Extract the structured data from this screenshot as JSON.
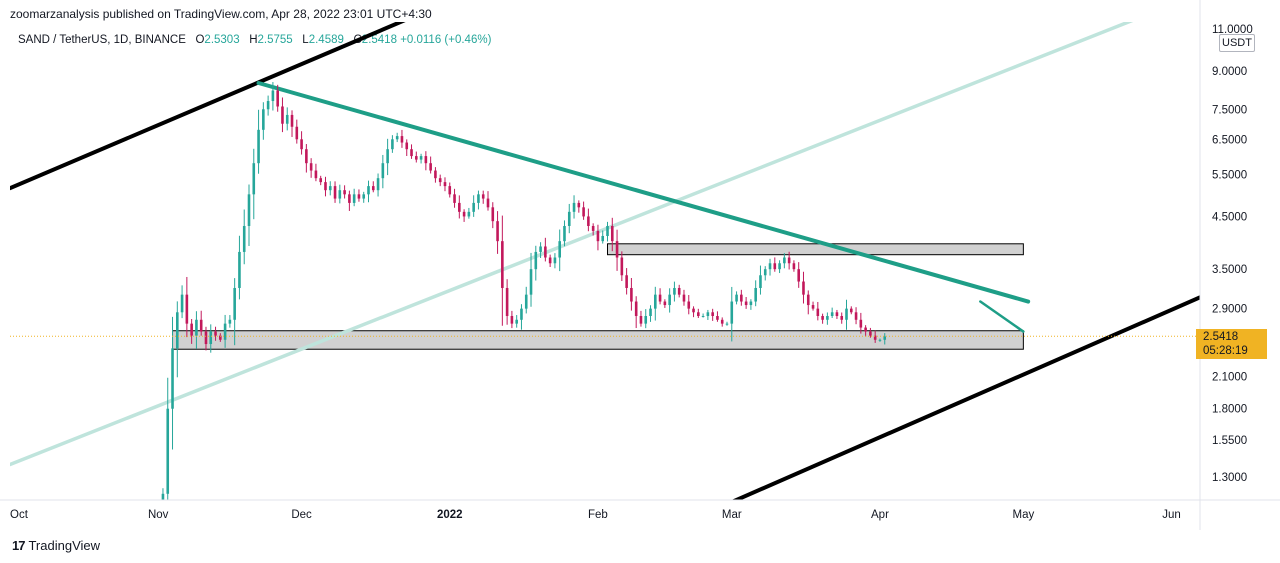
{
  "header": {
    "publisher": "zoomarzanalysis published on TradingView.com, Apr 28, 2022 23:01 UTC+4:30"
  },
  "legend": {
    "symbol": "SAND / TetherUS, 1D, BINANCE",
    "open_label": "O",
    "open": "2.5303",
    "high_label": "H",
    "high": "2.5755",
    "low_label": "L",
    "low": "2.4589",
    "close_label": "C",
    "close": "2.5418",
    "change": "+0.0116 (+0.46%)"
  },
  "price_axis": {
    "unit": "USDT",
    "current_price": "2.5418",
    "countdown": "05:28:19"
  },
  "footer": {
    "brand": "TradingView"
  },
  "colors": {
    "up": "#26a69a",
    "down": "#c2185b",
    "trendline": "#1e9e87",
    "channel": "#000000",
    "channel_mid": "#bfe4dc",
    "zone": "#d1d1d1",
    "tag": "#f0b323"
  },
  "chart_data": {
    "type": "candlestick",
    "title": "SAND / TetherUS, 1D, BINANCE",
    "scale": "log",
    "ylim": [
      1.1,
      12.0
    ],
    "y_ticks": [
      {
        "value": 11.0,
        "label": "11.0000"
      },
      {
        "value": 9.0,
        "label": "9.0000"
      },
      {
        "value": 7.5,
        "label": "7.5000"
      },
      {
        "value": 6.5,
        "label": "6.5000"
      },
      {
        "value": 5.5,
        "label": "5.5000"
      },
      {
        "value": 4.5,
        "label": "4.5000"
      },
      {
        "value": 3.5,
        "label": "3.5000"
      },
      {
        "value": 2.9,
        "label": "2.9000"
      },
      {
        "value": 2.1,
        "label": "2.1000"
      },
      {
        "value": 1.8,
        "label": "1.8000"
      },
      {
        "value": 1.55,
        "label": "1.5500"
      },
      {
        "value": 1.3,
        "label": "1.3000"
      }
    ],
    "x_ticks": [
      {
        "day": 0,
        "label": "Oct"
      },
      {
        "day": 31,
        "label": "Nov"
      },
      {
        "day": 61,
        "label": "Dec"
      },
      {
        "day": 92,
        "label": "2022",
        "bold": true
      },
      {
        "day": 123,
        "label": "Feb"
      },
      {
        "day": 151,
        "label": "Mar"
      },
      {
        "day": 182,
        "label": "Apr"
      },
      {
        "day": 212,
        "label": "May"
      },
      {
        "day": 243,
        "label": "Jun"
      }
    ],
    "closes": [
      1.2,
      1.8,
      2.4,
      2.85,
      3.1,
      2.7,
      2.55,
      2.75,
      2.6,
      2.45,
      2.6,
      2.55,
      2.5,
      2.7,
      2.75,
      3.2,
      3.8,
      4.3,
      5.0,
      5.8,
      6.8,
      7.5,
      7.8,
      8.2,
      7.6,
      7.0,
      7.3,
      6.9,
      6.5,
      6.2,
      5.8,
      5.6,
      5.4,
      5.3,
      5.1,
      5.2,
      4.9,
      5.1,
      5.0,
      4.8,
      5.0,
      4.9,
      5.0,
      5.2,
      5.1,
      5.4,
      5.8,
      6.2,
      6.5,
      6.6,
      6.4,
      6.2,
      6.0,
      5.9,
      6.0,
      5.8,
      5.6,
      5.4,
      5.3,
      5.2,
      5.0,
      4.8,
      4.6,
      4.5,
      4.6,
      4.8,
      5.0,
      4.9,
      4.7,
      4.4,
      4.0,
      3.2,
      2.8,
      2.7,
      2.75,
      2.9,
      3.1,
      3.5,
      3.8,
      3.9,
      3.7,
      3.6,
      3.7,
      4.0,
      4.3,
      4.6,
      4.8,
      4.7,
      4.5,
      4.3,
      4.2,
      4.0,
      4.1,
      4.3,
      4.0,
      3.7,
      3.4,
      3.2,
      3.0,
      2.8,
      2.7,
      2.8,
      2.9,
      3.1,
      3.0,
      2.95,
      3.1,
      3.2,
      3.1,
      3.0,
      2.9,
      2.85,
      2.8,
      2.8,
      2.85,
      2.8,
      2.75,
      2.7,
      2.7,
      3.0,
      3.1,
      3.0,
      2.95,
      3.0,
      3.2,
      3.4,
      3.5,
      3.6,
      3.5,
      3.6,
      3.7,
      3.6,
      3.5,
      3.3,
      3.1,
      2.95,
      2.9,
      2.8,
      2.75,
      2.8,
      2.85,
      2.8,
      2.75,
      2.9,
      2.85,
      2.75,
      2.65,
      2.6,
      2.55,
      2.5,
      2.5,
      2.54
    ],
    "channel_upper": [
      {
        "day": 0,
        "value": 5.15
      },
      {
        "day": 89,
        "value": 12.2
      }
    ],
    "channel_lower": [
      {
        "day": 148,
        "value": 1.12
      },
      {
        "day": 255,
        "value": 3.25
      }
    ],
    "channel_mid": [
      {
        "day": 0,
        "value": 1.38
      },
      {
        "day": 240,
        "value": 12.0
      }
    ],
    "descending_trendline": [
      {
        "day": 52,
        "value": 8.5
      },
      {
        "day": 213,
        "value": 3.0
      }
    ],
    "short_trendline": [
      {
        "day": 203,
        "value": 3.0
      },
      {
        "day": 212,
        "value": 2.6
      }
    ],
    "zones": [
      {
        "name": "upper-zone",
        "day_from": 125,
        "day_to": 212,
        "from": 3.75,
        "to": 3.95
      },
      {
        "name": "lower-zone",
        "day_from": 34,
        "day_to": 212,
        "from": 2.39,
        "to": 2.61
      }
    ],
    "last_price": 2.5418
  }
}
